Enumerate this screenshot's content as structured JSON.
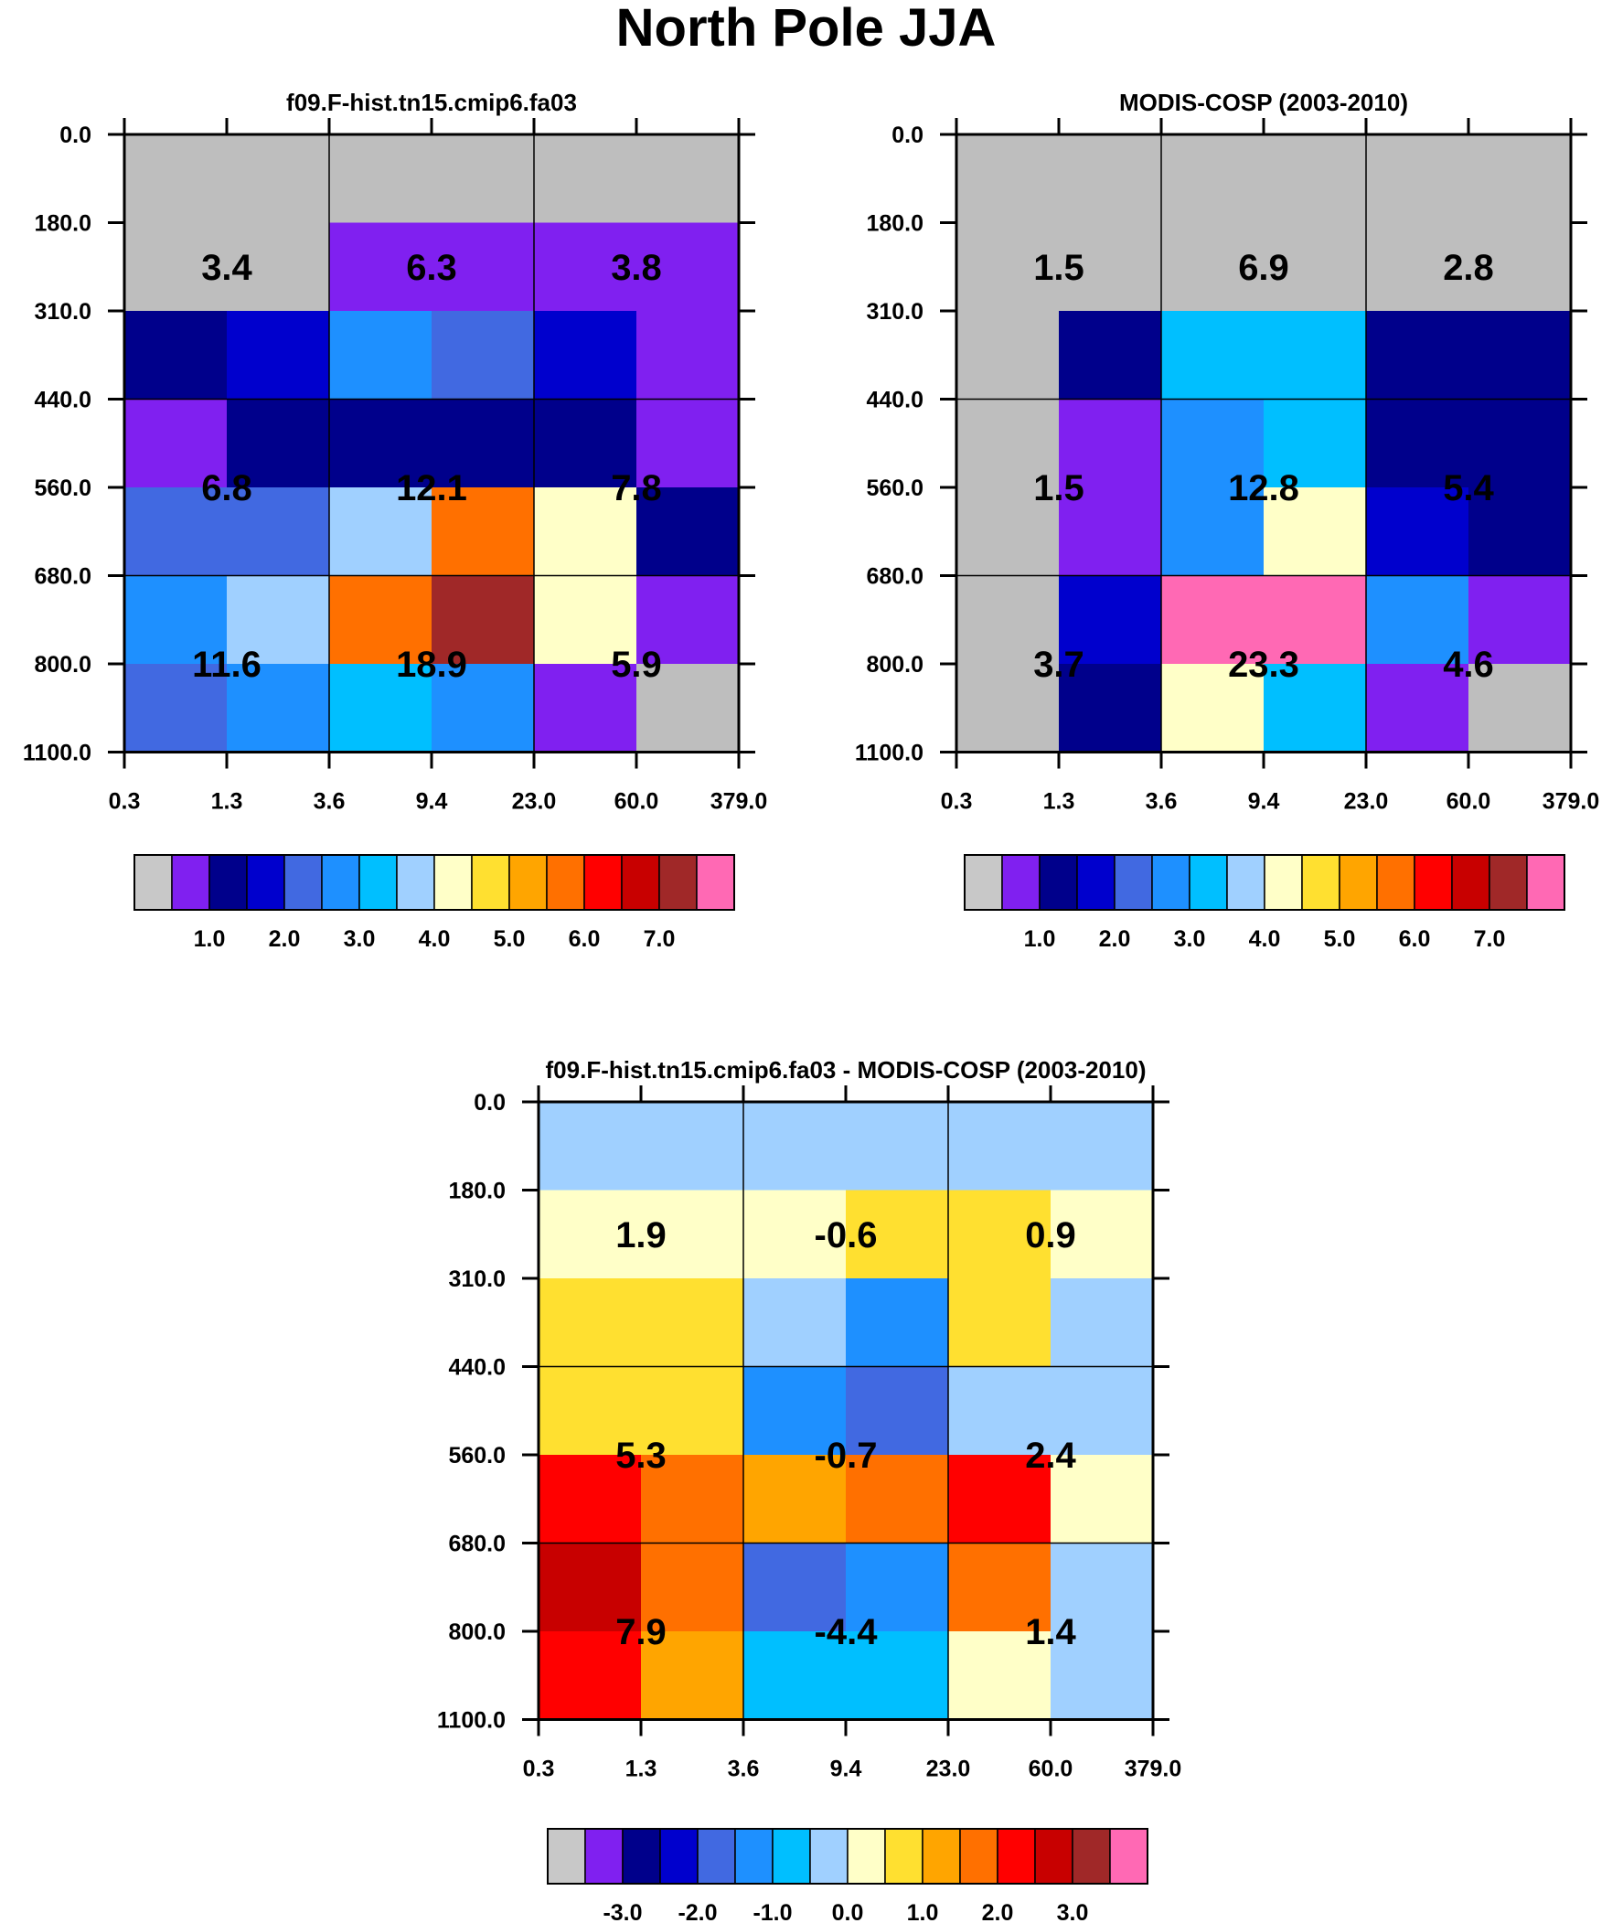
{
  "title": "North Pole JJA",
  "chart_data": [
    {
      "type": "heatmap",
      "title": "f09.F-hist.tn15.cmip6.fa03",
      "x_ticks": [
        "0.3",
        "1.3",
        "3.6",
        "9.4",
        "23.0",
        "60.0",
        "379.0"
      ],
      "y_ticks": [
        "0.0",
        "180.0",
        "310.0",
        "440.0",
        "560.0",
        "680.0",
        "800.0",
        "1100.0"
      ],
      "cell_colors": [
        [
          "#bebebe",
          "#bebebe",
          "#bebebe",
          "#bebebe",
          "#bebebe",
          "#bebebe"
        ],
        [
          "#bebebe",
          "#bebebe",
          "#8020f0",
          "#8020f0",
          "#8020f0",
          "#8020f0"
        ],
        [
          "#00008b",
          "#0000cd",
          "#1e90ff",
          "#4169e1",
          "#0000cd",
          "#8020f0"
        ],
        [
          "#8020f0",
          "#00008b",
          "#00008b",
          "#00008b",
          "#00008b",
          "#8020f0"
        ],
        [
          "#4169e1",
          "#4169e1",
          "#a0d0ff",
          "#ff7000",
          "#ffffc8",
          "#00008b"
        ],
        [
          "#1e90ff",
          "#a0d0ff",
          "#ff7000",
          "#a02828",
          "#ffffc8",
          "#8020f0"
        ],
        [
          "#4169e1",
          "#1e90ff",
          "#00bfff",
          "#1e90ff",
          "#8020f0",
          "#bebebe"
        ]
      ],
      "totals": [
        [
          "3.4",
          "6.3",
          "3.8"
        ],
        [
          "6.8",
          "12.1",
          "7.8"
        ],
        [
          "11.6",
          "18.9",
          "5.9"
        ]
      ],
      "colorbar": {
        "colors": [
          "#c8c8c8",
          "#8020f0",
          "#00008b",
          "#0000cd",
          "#4169e1",
          "#1e90ff",
          "#00bfff",
          "#a0d0ff",
          "#ffffc8",
          "#ffe030",
          "#ffa500",
          "#ff7000",
          "#ff0000",
          "#c80000",
          "#a02828",
          "#ff69b4"
        ],
        "labels": [
          "1.0",
          "2.0",
          "3.0",
          "4.0",
          "5.0",
          "6.0",
          "7.0"
        ]
      }
    },
    {
      "type": "heatmap",
      "title": "MODIS-COSP (2003-2010)",
      "x_ticks": [
        "0.3",
        "1.3",
        "3.6",
        "9.4",
        "23.0",
        "60.0",
        "379.0"
      ],
      "y_ticks": [
        "0.0",
        "180.0",
        "310.0",
        "440.0",
        "560.0",
        "680.0",
        "800.0",
        "1100.0"
      ],
      "cell_colors": [
        [
          "#bebebe",
          "#bebebe",
          "#bebebe",
          "#bebebe",
          "#bebebe",
          "#bebebe"
        ],
        [
          "#bebebe",
          "#bebebe",
          "#bebebe",
          "#bebebe",
          "#bebebe",
          "#bebebe"
        ],
        [
          "#bebebe",
          "#00008b",
          "#00bfff",
          "#00bfff",
          "#00008b",
          "#00008b"
        ],
        [
          "#bebebe",
          "#8020f0",
          "#1e90ff",
          "#00bfff",
          "#00008b",
          "#00008b"
        ],
        [
          "#bebebe",
          "#8020f0",
          "#1e90ff",
          "#ffffc8",
          "#0000cd",
          "#00008b"
        ],
        [
          "#bebebe",
          "#0000cd",
          "#ff69b4",
          "#ff69b4",
          "#1e90ff",
          "#8020f0"
        ],
        [
          "#bebebe",
          "#00008b",
          "#ffffc8",
          "#00bfff",
          "#8020f0",
          "#bebebe"
        ]
      ],
      "totals": [
        [
          "1.5",
          "6.9",
          "2.8"
        ],
        [
          "1.5",
          "12.8",
          "5.4"
        ],
        [
          "3.7",
          "23.3",
          "4.6"
        ]
      ],
      "colorbar": {
        "colors": [
          "#c8c8c8",
          "#8020f0",
          "#00008b",
          "#0000cd",
          "#4169e1",
          "#1e90ff",
          "#00bfff",
          "#a0d0ff",
          "#ffffc8",
          "#ffe030",
          "#ffa500",
          "#ff7000",
          "#ff0000",
          "#c80000",
          "#a02828",
          "#ff69b4"
        ],
        "labels": [
          "1.0",
          "2.0",
          "3.0",
          "4.0",
          "5.0",
          "6.0",
          "7.0"
        ]
      }
    },
    {
      "type": "heatmap",
      "title": "f09.F-hist.tn15.cmip6.fa03 - MODIS-COSP (2003-2010)",
      "x_ticks": [
        "0.3",
        "1.3",
        "3.6",
        "9.4",
        "23.0",
        "60.0",
        "379.0"
      ],
      "y_ticks": [
        "0.0",
        "180.0",
        "310.0",
        "440.0",
        "560.0",
        "680.0",
        "800.0",
        "1100.0"
      ],
      "cell_colors": [
        [
          "#a0d0ff",
          "#a0d0ff",
          "#a0d0ff",
          "#a0d0ff",
          "#a0d0ff",
          "#a0d0ff"
        ],
        [
          "#ffffc8",
          "#ffffc8",
          "#ffffc8",
          "#ffe030",
          "#ffe030",
          "#ffffc8"
        ],
        [
          "#ffe030",
          "#ffe030",
          "#a0d0ff",
          "#1e90ff",
          "#ffe030",
          "#a0d0ff"
        ],
        [
          "#ffe030",
          "#ffe030",
          "#1e90ff",
          "#4169e1",
          "#a0d0ff",
          "#a0d0ff"
        ],
        [
          "#ff0000",
          "#ff7000",
          "#ffa500",
          "#ff7000",
          "#ff0000",
          "#ffffc8"
        ],
        [
          "#c80000",
          "#ff7000",
          "#4169e1",
          "#1e90ff",
          "#ff7000",
          "#a0d0ff"
        ],
        [
          "#ff0000",
          "#ffa500",
          "#00bfff",
          "#00bfff",
          "#ffffc8",
          "#a0d0ff"
        ]
      ],
      "totals": [
        [
          "1.9",
          "-0.6",
          "0.9"
        ],
        [
          "5.3",
          "-0.7",
          "2.4"
        ],
        [
          "7.9",
          "-4.4",
          "1.4"
        ]
      ],
      "colorbar": {
        "colors": [
          "#c8c8c8",
          "#8020f0",
          "#00008b",
          "#0000cd",
          "#4169e1",
          "#1e90ff",
          "#00bfff",
          "#a0d0ff",
          "#ffffc8",
          "#ffe030",
          "#ffa500",
          "#ff7000",
          "#ff0000",
          "#c80000",
          "#a02828",
          "#ff69b4"
        ],
        "labels": [
          "-3.0",
          "-2.0",
          "-1.0",
          "0.0",
          "1.0",
          "2.0",
          "3.0"
        ]
      }
    }
  ]
}
